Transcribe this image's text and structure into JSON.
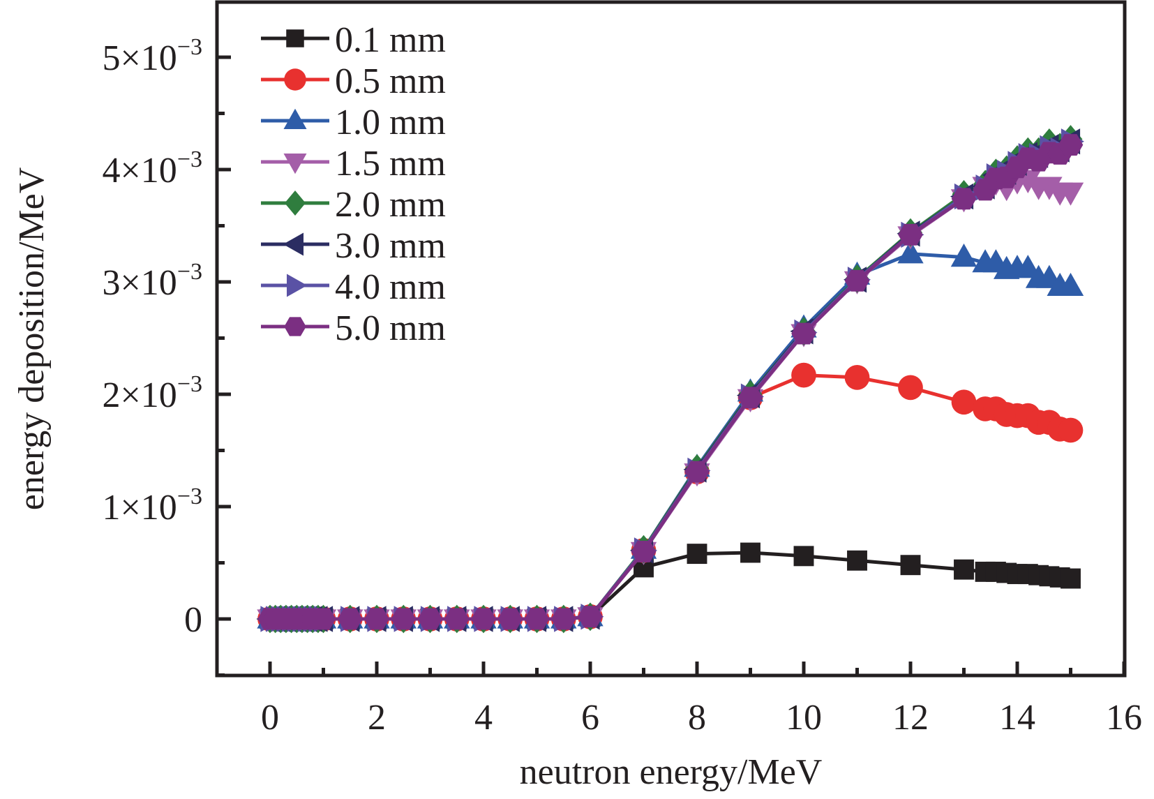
{
  "chart_data": {
    "type": "line",
    "title": "",
    "xlabel": "neutron energy/MeV",
    "ylabel": "energy deposition/MeV",
    "xlim": [
      -1,
      16
    ],
    "ylim": [
      -0.0005,
      0.0055
    ],
    "x_ticks": [
      0,
      2,
      4,
      6,
      8,
      10,
      12,
      14,
      16
    ],
    "x_tick_labels": [
      "0",
      "2",
      "4",
      "6",
      "8",
      "10",
      "12",
      "14",
      "16"
    ],
    "y_ticks": [
      0,
      0.001,
      0.002,
      0.003,
      0.004,
      0.005
    ],
    "y_tick_labels": [
      {
        "mantissa": "0",
        "exp": ""
      },
      {
        "mantissa": "1×10",
        "exp": "−3"
      },
      {
        "mantissa": "2×10",
        "exp": "−3"
      },
      {
        "mantissa": "3×10",
        "exp": "−3"
      },
      {
        "mantissa": "4×10",
        "exp": "−3"
      },
      {
        "mantissa": "5×10",
        "exp": "−3"
      }
    ],
    "grid": false,
    "legend_position": "top-left",
    "x": [
      0,
      0.1,
      0.2,
      0.3,
      0.4,
      0.5,
      0.6,
      0.7,
      0.8,
      0.9,
      1.0,
      1.5,
      2,
      2.5,
      3,
      3.5,
      4,
      4.5,
      5,
      5.5,
      6,
      7,
      8,
      9,
      10,
      11,
      12,
      13,
      13.4,
      13.6,
      13.8,
      14,
      14.2,
      14.4,
      14.6,
      14.8,
      15
    ],
    "series": [
      {
        "name": "0.1 mm",
        "color": "#231f20",
        "marker": "square",
        "values": [
          0,
          0,
          0,
          0,
          0,
          0,
          0,
          0,
          0,
          0,
          0,
          0,
          0,
          0,
          0,
          0,
          0,
          0,
          0,
          0,
          2e-05,
          0.00046,
          0.00058,
          0.00059,
          0.00056,
          0.00052,
          0.00048,
          0.00044,
          0.00042,
          0.00042,
          0.00041,
          0.0004,
          0.0004,
          0.00039,
          0.00038,
          0.00037,
          0.00036
        ]
      },
      {
        "name": "0.5 mm",
        "color": "#e8312f",
        "marker": "circle",
        "values": [
          0,
          0,
          0,
          0,
          0,
          0,
          0,
          0,
          0,
          0,
          0,
          0,
          0,
          0,
          0,
          0,
          0,
          0,
          0,
          0,
          2e-05,
          0.00061,
          0.00131,
          0.00197,
          0.00217,
          0.00215,
          0.00206,
          0.00193,
          0.00187,
          0.00187,
          0.00182,
          0.00181,
          0.00181,
          0.00175,
          0.00175,
          0.00169,
          0.00168
        ]
      },
      {
        "name": "1.0 mm",
        "color": "#2e5ca8",
        "marker": "triangle-up",
        "values": [
          0,
          0,
          0,
          0,
          0,
          0,
          0,
          0,
          0,
          0,
          0,
          0,
          0,
          0,
          0,
          0,
          0,
          0,
          0,
          0,
          2e-05,
          0.00062,
          0.00135,
          0.00202,
          0.00259,
          0.00306,
          0.00325,
          0.00322,
          0.00317,
          0.00317,
          0.00311,
          0.00312,
          0.00312,
          0.00303,
          0.00303,
          0.00296,
          0.00296
        ]
      },
      {
        "name": "1.5 mm",
        "color": "#a45ea8",
        "marker": "triangle-down",
        "values": [
          0,
          0,
          0,
          0,
          0,
          0,
          0,
          0,
          0,
          0,
          0,
          0,
          0,
          0,
          0,
          0,
          0,
          0,
          0,
          0,
          2e-05,
          0.0006,
          0.0013,
          0.00196,
          0.00254,
          0.00301,
          0.00341,
          0.00374,
          0.00385,
          0.00389,
          0.00384,
          0.0039,
          0.00391,
          0.00385,
          0.00385,
          0.0038,
          0.0038
        ]
      },
      {
        "name": "2.0 mm",
        "color": "#2f7d3e",
        "marker": "diamond",
        "values": [
          0,
          0,
          0,
          0,
          0,
          0,
          0,
          0,
          0,
          0,
          0,
          0,
          0,
          0,
          0,
          0,
          0,
          0,
          0,
          0,
          2e-05,
          0.00062,
          0.00134,
          0.002,
          0.00256,
          0.00303,
          0.00344,
          0.00378,
          0.00387,
          0.00397,
          0.004,
          0.00409,
          0.00416,
          0.00416,
          0.00424,
          0.0042,
          0.00427
        ]
      },
      {
        "name": "3.0 mm",
        "color": "#2b2d62",
        "marker": "triangle-left",
        "values": [
          0,
          0,
          0,
          0,
          0,
          0,
          0,
          0,
          0,
          0,
          0,
          0,
          0,
          0,
          0,
          0,
          0,
          0,
          0,
          0,
          2e-05,
          0.00061,
          0.00133,
          0.00199,
          0.00256,
          0.00302,
          0.00343,
          0.00376,
          0.00385,
          0.00395,
          0.00398,
          0.00406,
          0.00413,
          0.00413,
          0.0042,
          0.00418,
          0.00425
        ]
      },
      {
        "name": "4.0 mm",
        "color": "#5a52a5",
        "marker": "triangle-right",
        "values": [
          0,
          0,
          0,
          0,
          0,
          0,
          0,
          0,
          0,
          0,
          0,
          0,
          0,
          0,
          0,
          0,
          0,
          0,
          0,
          0,
          2e-05,
          0.00061,
          0.00132,
          0.00198,
          0.00255,
          0.00302,
          0.00342,
          0.00376,
          0.00384,
          0.00394,
          0.00397,
          0.00405,
          0.00412,
          0.00412,
          0.00419,
          0.00417,
          0.00425
        ]
      },
      {
        "name": "5.0 mm",
        "color": "#7b2f82",
        "marker": "hexagon",
        "values": [
          0,
          0,
          0,
          0,
          0,
          0,
          0,
          0,
          0,
          0,
          0,
          0,
          0,
          0,
          0,
          0,
          0,
          0,
          0,
          0,
          2e-05,
          0.0006,
          0.00131,
          0.00197,
          0.00254,
          0.00301,
          0.00342,
          0.00374,
          0.00382,
          0.00392,
          0.00393,
          0.00402,
          0.0041,
          0.00408,
          0.00415,
          0.00414,
          0.00422
        ]
      }
    ]
  }
}
